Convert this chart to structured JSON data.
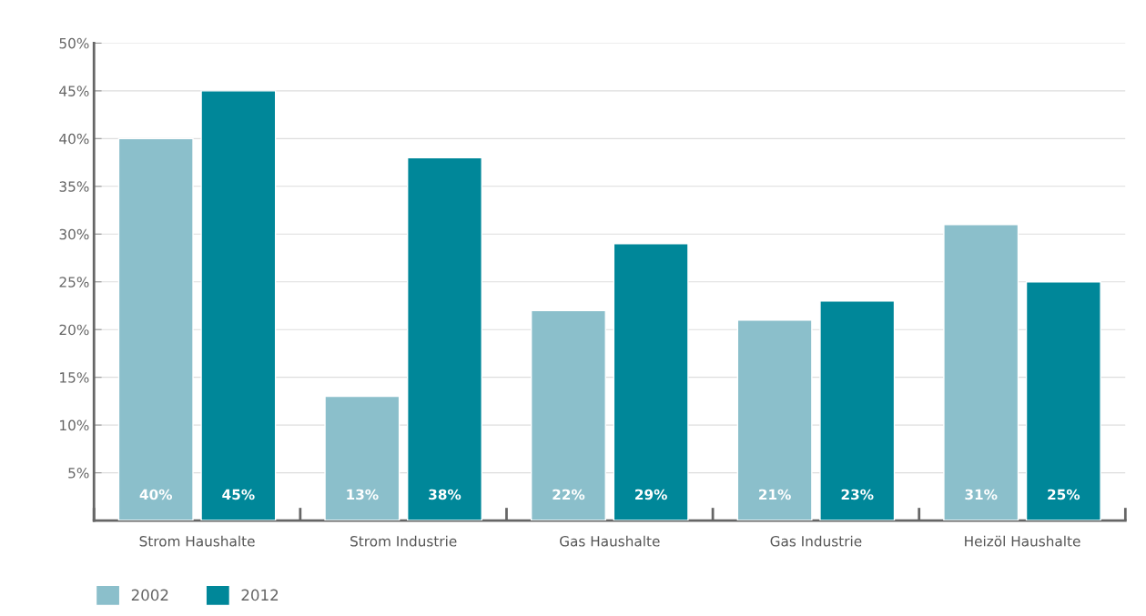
{
  "chart_data": {
    "type": "bar",
    "categories": [
      "Strom Haushalte",
      "Strom Industrie",
      "Gas Haushalte",
      "Gas Industrie",
      "Heizöl Haushalte"
    ],
    "series": [
      {
        "name": "2002",
        "color": "#8bbfcb",
        "values": [
          40,
          13,
          22,
          21,
          31
        ],
        "value_labels": [
          "40%",
          "13%",
          "22%",
          "21%",
          "31%"
        ]
      },
      {
        "name": "2012",
        "color": "#008799",
        "values": [
          45,
          38,
          29,
          23,
          25
        ],
        "value_labels": [
          "45%",
          "38%",
          "29%",
          "23%",
          "25%"
        ]
      }
    ],
    "ylim": [
      0,
      50
    ],
    "yticks": [
      {
        "value": 5,
        "label": "5%"
      },
      {
        "value": 10,
        "label": "10%"
      },
      {
        "value": 15,
        "label": "15%"
      },
      {
        "value": 20,
        "label": "20%"
      },
      {
        "value": 25,
        "label": "25%"
      },
      {
        "value": 30,
        "label": "30%"
      },
      {
        "value": 35,
        "label": "35%"
      },
      {
        "value": 40,
        "label": "40%"
      },
      {
        "value": 45,
        "label": "45%"
      },
      {
        "value": 50,
        "label": "50%"
      }
    ],
    "grid": "y",
    "legend": "bottom left"
  }
}
